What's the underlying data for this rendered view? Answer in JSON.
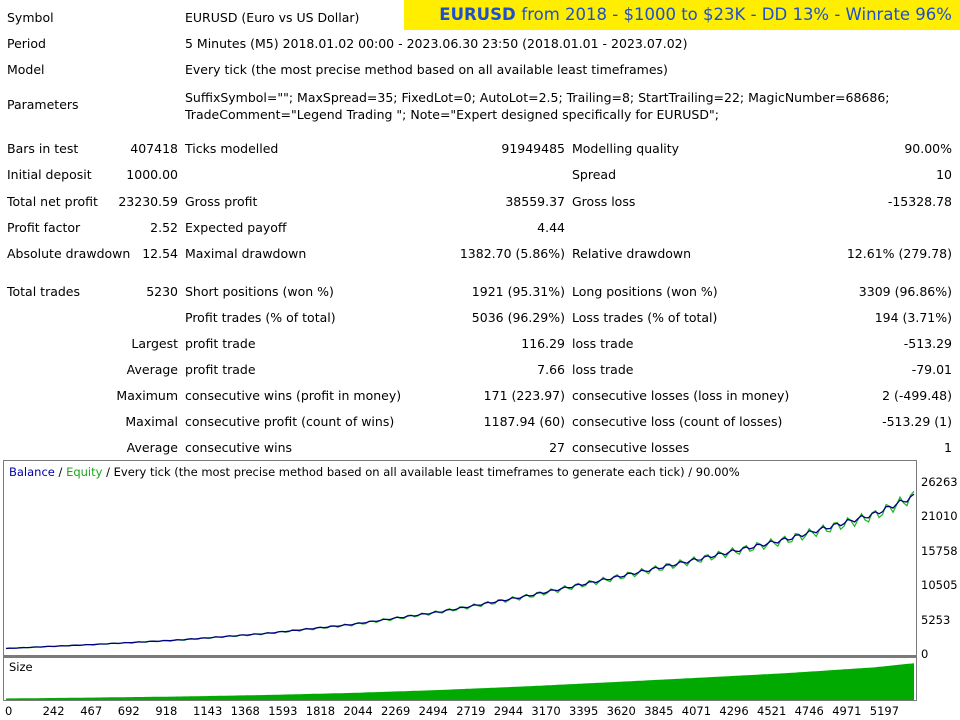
{
  "banner": {
    "symbol": "EURUSD",
    "text": "from 2018 - $1000 to $23K - DD 13% - Winrate 96%"
  },
  "info": {
    "symbol_label": "Symbol",
    "symbol_value": "EURUSD (Euro vs US Dollar)",
    "period_label": "Period",
    "period_value": "5 Minutes (M5) 2018.01.02 00:00 - 2023.06.30 23:50 (2018.01.01 - 2023.07.02)",
    "model_label": "Model",
    "model_value": "Every tick (the most precise method based on all available least timeframes)",
    "parameters_label": "Parameters",
    "parameters_value": "SuffixSymbol=\"\"; MaxSpread=35; FixedLot=0; AutoLot=2.5; Trailing=8; StartTrailing=22; MagicNumber=68686; TradeComment=\"Legend Trading \"; Note=\"Expert designed specifically for EURUSD\";"
  },
  "stats": {
    "bars_label": "Bars in test",
    "bars_value": "407418",
    "ticks_label": "Ticks modelled",
    "ticks_value": "91949485",
    "quality_label": "Modelling quality",
    "quality_value": "90.00%",
    "deposit_label": "Initial deposit",
    "deposit_value": "1000.00",
    "spread_label": "Spread",
    "spread_value": "10",
    "netprofit_label": "Total net profit",
    "netprofit_value": "23230.59",
    "grossprofit_label": "Gross profit",
    "grossprofit_value": "38559.37",
    "grossloss_label": "Gross loss",
    "grossloss_value": "-15328.78",
    "pf_label": "Profit factor",
    "pf_value": "2.52",
    "payoff_label": "Expected payoff",
    "payoff_value": "4.44",
    "absdd_label": "Absolute drawdown",
    "absdd_value": "12.54",
    "maxdd_label": "Maximal drawdown",
    "maxdd_value": "1382.70 (5.86%)",
    "reldd_label": "Relative drawdown",
    "reldd_value": "12.61% (279.78)",
    "trades_label": "Total trades",
    "trades_value": "5230",
    "short_label": "Short positions (won %)",
    "short_value": "1921 (95.31%)",
    "long_label": "Long positions (won %)",
    "long_value": "3309 (96.86%)",
    "profittr_label": "Profit trades (% of total)",
    "profittr_value": "5036 (96.29%)",
    "losstr_label": "Loss trades (% of total)",
    "losstr_value": "194 (3.71%)",
    "largest_label": "Largest",
    "largest_profit_label": "profit trade",
    "largest_profit_value": "116.29",
    "largest_loss_label": "loss trade",
    "largest_loss_value": "-513.29",
    "average_label": "Average",
    "average_profit_label": "profit trade",
    "average_profit_value": "7.66",
    "average_loss_label": "loss trade",
    "average_loss_value": "-79.01",
    "maximum_label": "Maximum",
    "max_wins_label": "consecutive wins (profit in money)",
    "max_wins_value": "171 (223.97)",
    "max_losses_label": "consecutive losses (loss in money)",
    "max_losses_value": "2 (-499.48)",
    "maximal_label": "Maximal",
    "mx_profit_label": "consecutive profit (count of wins)",
    "mx_profit_value": "1187.94 (60)",
    "mx_loss_label": "consecutive loss (count of losses)",
    "mx_loss_value": "-513.29 (1)",
    "avgcons_label": "Average",
    "avg_wins_label": "consecutive wins",
    "avg_wins_value": "27",
    "avg_losses_label": "consecutive losses",
    "avg_losses_value": "1"
  },
  "chart": {
    "legend_balance": "Balance",
    "legend_sep1": " / ",
    "legend_equity": "Equity",
    "legend_rest": " / Every tick (the most precise method based on all available least timeframes to generate each tick) / 90.00%",
    "size_label": "Size",
    "y_ticks": [
      "26263",
      "21010",
      "15758",
      "10505",
      "5253",
      "0"
    ],
    "x_ticks": [
      "0",
      "242",
      "467",
      "692",
      "918",
      "1143",
      "1368",
      "1593",
      "1818",
      "2044",
      "2269",
      "2494",
      "2719",
      "2944",
      "3170",
      "3395",
      "3620",
      "3845",
      "4071",
      "4296",
      "4521",
      "4746",
      "4971",
      "5197"
    ],
    "colors": {
      "balance": "#00007f",
      "equity": "#18b818",
      "size": "#00aa00"
    }
  },
  "chart_data": {
    "type": "line",
    "series": [
      {
        "name": "Balance",
        "x": [
          0,
          500,
          1000,
          1500,
          2000,
          2500,
          3000,
          3500,
          4000,
          4500,
          5000,
          5230
        ],
        "y": [
          1000,
          1600,
          2300,
          3300,
          4700,
          6600,
          9000,
          11800,
          14700,
          17700,
          21500,
          24230
        ]
      },
      {
        "name": "Equity",
        "x": [
          0,
          500,
          1000,
          1500,
          2000,
          2500,
          3000,
          3500,
          4000,
          4500,
          5000,
          5230
        ],
        "y": [
          1000,
          1590,
          2280,
          3280,
          4650,
          6580,
          8950,
          11750,
          14650,
          17600,
          21300,
          24200
        ]
      }
    ],
    "ylim": [
      0,
      26263
    ],
    "xlim": [
      0,
      5230
    ]
  }
}
